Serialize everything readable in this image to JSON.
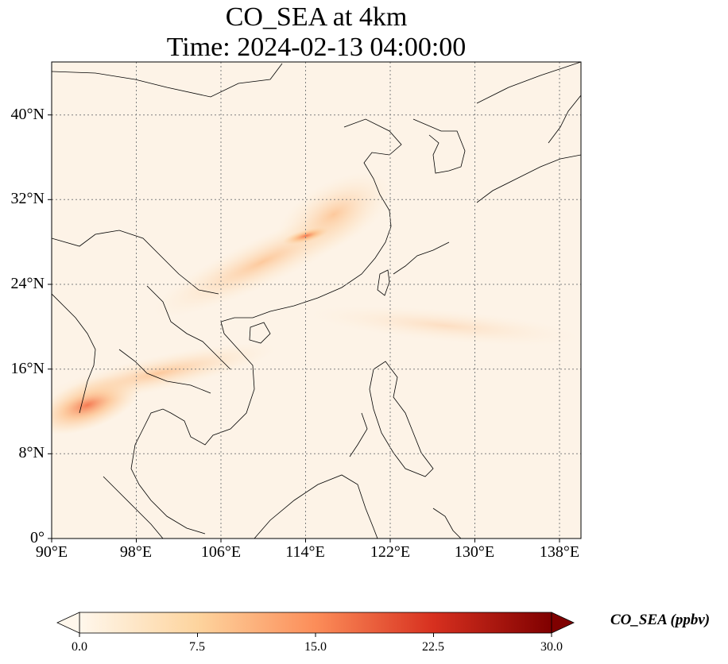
{
  "title": {
    "line1": "CO_SEA at 4km",
    "line2": "Time: 2024-02-13 04:00:00"
  },
  "map": {
    "lon_range": [
      90,
      140
    ],
    "lat_range": [
      0,
      45
    ],
    "gridlines": "dotted",
    "y_ticks": [
      "0°",
      "8°N",
      "16°N",
      "24°N",
      "32°N",
      "40°N"
    ],
    "x_ticks": [
      "90°E",
      "98°E",
      "106°E",
      "114°E",
      "122°E",
      "130°E",
      "138°E"
    ],
    "colormap": "OrRd",
    "colors": {
      "low": "#fff7ec",
      "mid": "#fc8d59",
      "high": "#7f0000",
      "coast": "#000000",
      "grid": "#808080"
    }
  },
  "colorbar": {
    "label": "CO_SEA (ppbv)",
    "range": [
      0,
      30
    ],
    "ticks": [
      "0.0",
      "7.5",
      "15.0",
      "22.5",
      "30.0"
    ],
    "extend": "both"
  }
}
